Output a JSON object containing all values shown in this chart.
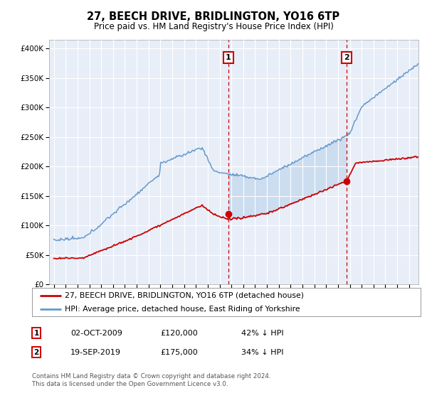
{
  "title1": "27, BEECH DRIVE, BRIDLINGTON, YO16 6TP",
  "title2": "Price paid vs. HM Land Registry's House Price Index (HPI)",
  "ylabel_ticks": [
    "£0",
    "£50K",
    "£100K",
    "£150K",
    "£200K",
    "£250K",
    "£300K",
    "£350K",
    "£400K"
  ],
  "ytick_values": [
    0,
    50000,
    100000,
    150000,
    200000,
    250000,
    300000,
    350000,
    400000
  ],
  "ylim": [
    0,
    415000
  ],
  "legend_line1": "27, BEECH DRIVE, BRIDLINGTON, YO16 6TP (detached house)",
  "legend_line2": "HPI: Average price, detached house, East Riding of Yorkshire",
  "sale1_date": "02-OCT-2009",
  "sale1_price": "£120,000",
  "sale1_hpi": "42% ↓ HPI",
  "sale2_date": "19-SEP-2019",
  "sale2_price": "£175,000",
  "sale2_hpi": "34% ↓ HPI",
  "footer": "Contains HM Land Registry data © Crown copyright and database right 2024.\nThis data is licensed under the Open Government Licence v3.0.",
  "bg_color": "#e8eef8",
  "plot_bg": "#ffffff",
  "red_line_color": "#cc0000",
  "blue_line_color": "#6699cc",
  "shade_color": "#ccddf0",
  "vline_color": "#cc0000",
  "box_color": "#cc0000",
  "grid_color": "#ffffff"
}
